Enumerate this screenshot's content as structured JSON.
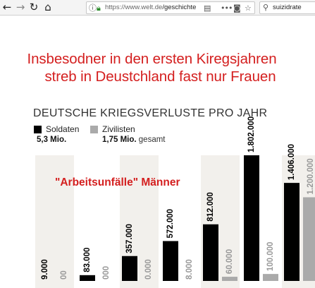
{
  "browser": {
    "url_host": "https://www.welt.de",
    "url_path": "/geschichte",
    "search_value": "suizidrate",
    "icons": [
      "back-icon",
      "forward-icon",
      "reload-icon",
      "home-icon",
      "info-icon",
      "lock-icon",
      "reader-icon",
      "more-icon",
      "pocket-icon",
      "bookmark-star-icon",
      "search-icon"
    ]
  },
  "headline": {
    "line1": "Insbesodner in den ersten Kiregsjahren",
    "line2": "streb in Deustchland fast nur Frauen"
  },
  "colors": {
    "red": "#d41f1f",
    "soldiers": "#000000",
    "civilians": "#aaaaaa",
    "band": "#f2f0ec"
  },
  "chart_data": {
    "type": "bar",
    "title": "DEUTSCHE KRIEGSVERLUSTE PRO JAHR",
    "legend": [
      {
        "name": "Soldaten",
        "total_value": "5,3 Mio.",
        "color": "#000000"
      },
      {
        "name": "Zivilisten",
        "total_value": "1,75 Mio.",
        "color": "#aaaaaa"
      }
    ],
    "legend_total_suffix": "gesamt",
    "annotation": "\"Arbeitsunfälle\" Männer",
    "series": [
      {
        "name": "Soldaten",
        "values": [
          9000,
          83000,
          357000,
          572000,
          812000,
          1802000,
          1406000
        ],
        "labels": [
          "9.000",
          "83.000",
          "357.000",
          "572.000",
          "812.000",
          "1.802.000",
          "1.406.000"
        ]
      },
      {
        "name": "Zivilisten",
        "values": [
          null,
          null,
          0,
          8000,
          60000,
          100000,
          1200000
        ],
        "labels": [
          "00",
          "000",
          "0.000",
          "8.000",
          "60.000",
          "100.000",
          "1.200.000"
        ]
      }
    ]
  }
}
